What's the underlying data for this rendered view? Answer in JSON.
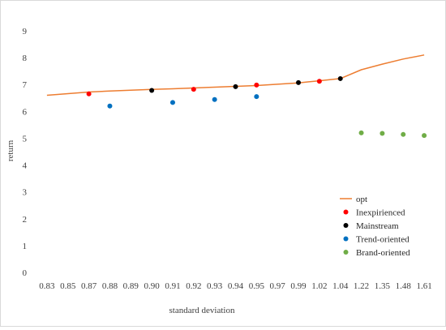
{
  "chart_data": {
    "type": "scatter",
    "title": "",
    "xlabel": "standard deviation",
    "ylabel": "return",
    "ylim": [
      0,
      9
    ],
    "yticks": [
      "0",
      "1",
      "2",
      "3",
      "4",
      "5",
      "6",
      "7",
      "8",
      "9"
    ],
    "categories": [
      "0.83",
      "0.85",
      "0.87",
      "0.88",
      "0.89",
      "0.90",
      "0.91",
      "0.92",
      "0.93",
      "0.94",
      "0.95",
      "0.97",
      "0.99",
      "1.02",
      "1.04",
      "1.22",
      "1.35",
      "1.48",
      "1.61"
    ],
    "grid": false,
    "legend_position": "right",
    "series": [
      {
        "name": "opt",
        "kind": "line",
        "color": "#ED7D31",
        "points": [
          {
            "x": "0.83",
            "y": 6.6
          },
          {
            "x": "0.85",
            "y": 6.66
          },
          {
            "x": "0.87",
            "y": 6.72
          },
          {
            "x": "0.88",
            "y": 6.76
          },
          {
            "x": "0.89",
            "y": 6.79
          },
          {
            "x": "0.90",
            "y": 6.82
          },
          {
            "x": "0.91",
            "y": 6.84
          },
          {
            "x": "0.92",
            "y": 6.87
          },
          {
            "x": "0.93",
            "y": 6.9
          },
          {
            "x": "0.94",
            "y": 6.93
          },
          {
            "x": "0.95",
            "y": 6.96
          },
          {
            "x": "0.97",
            "y": 7.01
          },
          {
            "x": "0.99",
            "y": 7.06
          },
          {
            "x": "1.02",
            "y": 7.14
          },
          {
            "x": "1.04",
            "y": 7.22
          },
          {
            "x": "1.22",
            "y": 7.55
          },
          {
            "x": "1.35",
            "y": 7.76
          },
          {
            "x": "1.48",
            "y": 7.95
          },
          {
            "x": "1.61",
            "y": 8.1
          }
        ]
      },
      {
        "name": "Inexpirienced",
        "kind": "marker",
        "color": "#FF0000",
        "points": [
          {
            "x": "0.87",
            "y": 6.65
          },
          {
            "x": "0.92",
            "y": 6.82
          },
          {
            "x": "0.95",
            "y": 6.98
          },
          {
            "x": "1.02",
            "y": 7.12
          }
        ]
      },
      {
        "name": "Mainstream",
        "kind": "marker",
        "color": "#000000",
        "points": [
          {
            "x": "0.90",
            "y": 6.78
          },
          {
            "x": "0.94",
            "y": 6.92
          },
          {
            "x": "0.99",
            "y": 7.07
          },
          {
            "x": "1.04",
            "y": 7.22
          }
        ]
      },
      {
        "name": "Trend-oriented",
        "kind": "marker",
        "color": "#0070C0",
        "points": [
          {
            "x": "0.88",
            "y": 6.2
          },
          {
            "x": "0.91",
            "y": 6.33
          },
          {
            "x": "0.93",
            "y": 6.44
          },
          {
            "x": "0.95",
            "y": 6.55
          }
        ]
      },
      {
        "name": "Brand-oriented",
        "kind": "marker",
        "color": "#70AD47",
        "points": [
          {
            "x": "1.22",
            "y": 5.2
          },
          {
            "x": "1.35",
            "y": 5.18
          },
          {
            "x": "1.48",
            "y": 5.14
          },
          {
            "x": "1.61",
            "y": 5.1
          }
        ]
      }
    ]
  }
}
